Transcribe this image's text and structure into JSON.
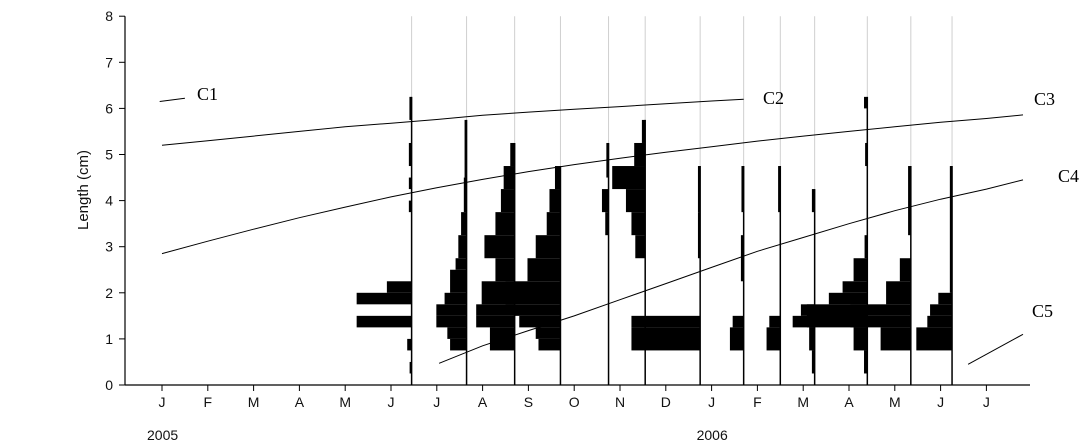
{
  "chart_data": {
    "type": "line",
    "ylabel": "Length (cm)",
    "ylim": [
      0,
      8
    ],
    "yticks": [
      "0",
      "1",
      "2",
      "3",
      "4",
      "5",
      "6",
      "7",
      "8"
    ],
    "x_months": [
      "J",
      "F",
      "M",
      "A",
      "M",
      "J",
      "J",
      "A",
      "S",
      "O",
      "N",
      "D",
      "J",
      "F",
      "M",
      "A",
      "M",
      "J",
      "J"
    ],
    "x_years": [
      {
        "label": "2005",
        "month_index": 0
      },
      {
        "label": "2006",
        "month_index": 12
      }
    ],
    "xlim": [
      0,
      18.8
    ],
    "sample_dates": [
      5.45,
      6.65,
      7.7,
      8.7,
      9.75,
      10.55,
      11.75,
      12.7,
      13.5,
      14.25,
      15.4,
      16.35,
      17.25
    ],
    "bar_scale": 0.012,
    "length_frequency": [
      {
        "date": 5.45,
        "bins": [
          [
            0.25,
            0.5,
            2
          ],
          [
            0.75,
            1.0,
            8
          ],
          [
            1.25,
            1.5,
            100
          ],
          [
            1.75,
            2.0,
            100
          ],
          [
            2.0,
            2.25,
            45
          ],
          [
            3.75,
            4.0,
            5
          ],
          [
            4.25,
            4.5,
            5
          ],
          [
            4.75,
            5.0,
            5
          ],
          [
            5.0,
            5.25,
            5
          ],
          [
            5.75,
            6.25,
            4
          ]
        ]
      },
      {
        "date": 6.65,
        "bins": [
          [
            0.75,
            1.0,
            30
          ],
          [
            1.0,
            1.25,
            35
          ],
          [
            1.25,
            1.5,
            55
          ],
          [
            1.5,
            1.75,
            55
          ],
          [
            1.75,
            2.0,
            40
          ],
          [
            2.0,
            2.5,
            30
          ],
          [
            2.5,
            2.75,
            20
          ],
          [
            2.75,
            3.25,
            15
          ],
          [
            3.25,
            3.75,
            10
          ],
          [
            3.75,
            4.5,
            5
          ],
          [
            4.5,
            5.75,
            3
          ]
        ]
      },
      {
        "date": 7.7,
        "bins": [
          [
            0.75,
            1.25,
            45
          ],
          [
            1.25,
            1.5,
            70
          ],
          [
            1.5,
            1.75,
            70
          ],
          [
            1.75,
            2.25,
            60
          ],
          [
            2.25,
            2.75,
            35
          ],
          [
            2.75,
            3.25,
            55
          ],
          [
            3.25,
            3.75,
            35
          ],
          [
            3.75,
            4.25,
            25
          ],
          [
            4.25,
            4.75,
            20
          ],
          [
            4.75,
            5.25,
            8
          ]
        ]
      },
      {
        "date": 8.7,
        "bins": [
          [
            0.75,
            1.0,
            40
          ],
          [
            1.0,
            1.25,
            45
          ],
          [
            1.25,
            1.5,
            75
          ],
          [
            1.5,
            1.75,
            85
          ],
          [
            1.75,
            2.25,
            100
          ],
          [
            2.25,
            2.75,
            60
          ],
          [
            2.75,
            3.25,
            45
          ],
          [
            3.25,
            3.75,
            25
          ],
          [
            3.75,
            4.25,
            20
          ],
          [
            4.25,
            4.75,
            10
          ]
        ]
      },
      {
        "date": 9.75,
        "bins": [
          [
            3.25,
            3.75,
            6
          ],
          [
            3.75,
            4.25,
            12
          ],
          [
            4.5,
            5.25,
            4
          ]
        ]
      },
      {
        "date": 10.55,
        "bins": [
          [
            2.75,
            3.25,
            18
          ],
          [
            3.25,
            3.75,
            25
          ],
          [
            3.75,
            4.25,
            35
          ],
          [
            4.25,
            4.75,
            60
          ],
          [
            4.75,
            5.25,
            20
          ],
          [
            5.25,
            5.75,
            6
          ]
        ]
      },
      {
        "date": 11.75,
        "bins": [
          [
            0.75,
            1.25,
            125
          ],
          [
            1.25,
            1.5,
            125
          ],
          [
            2.75,
            3.75,
            4
          ],
          [
            3.75,
            4.75,
            4
          ]
        ]
      },
      {
        "date": 12.7,
        "bins": [
          [
            0.75,
            1.25,
            25
          ],
          [
            1.25,
            1.5,
            20
          ],
          [
            2.25,
            3.25,
            5
          ],
          [
            3.75,
            4.75,
            4
          ]
        ]
      },
      {
        "date": 13.5,
        "bins": [
          [
            0.75,
            1.25,
            25
          ],
          [
            1.25,
            1.5,
            20
          ],
          [
            3.75,
            4.75,
            4
          ]
        ]
      },
      {
        "date": 14.25,
        "bins": [
          [
            0.25,
            0.75,
            5
          ],
          [
            0.75,
            1.25,
            10
          ],
          [
            1.25,
            1.5,
            40
          ],
          [
            1.5,
            1.75,
            25
          ],
          [
            3.75,
            4.25,
            5
          ]
        ]
      },
      {
        "date": 15.4,
        "bins": [
          [
            0.25,
            0.75,
            6
          ],
          [
            0.75,
            1.25,
            25
          ],
          [
            1.25,
            1.75,
            110
          ],
          [
            1.75,
            2.0,
            70
          ],
          [
            2.0,
            2.25,
            45
          ],
          [
            2.25,
            2.75,
            25
          ],
          [
            2.75,
            3.25,
            5
          ],
          [
            4.75,
            5.25,
            4
          ],
          [
            6.0,
            6.25,
            6
          ]
        ]
      },
      {
        "date": 16.35,
        "bins": [
          [
            0.75,
            1.25,
            55
          ],
          [
            1.25,
            1.5,
            110
          ],
          [
            1.5,
            1.75,
            110
          ],
          [
            1.75,
            2.25,
            45
          ],
          [
            2.25,
            2.75,
            20
          ],
          [
            3.25,
            4.75,
            5
          ]
        ]
      },
      {
        "date": 17.25,
        "bins": [
          [
            0.75,
            1.25,
            65
          ],
          [
            1.25,
            1.5,
            45
          ],
          [
            1.5,
            1.75,
            40
          ],
          [
            1.75,
            2.0,
            25
          ],
          [
            2.0,
            4.75,
            4
          ]
        ]
      }
    ],
    "cohorts": [
      {
        "label": "C1",
        "points": [
          [
            -0.05,
            6.15
          ],
          [
            0.5,
            6.22
          ]
        ]
      },
      {
        "label": "C2",
        "points": [
          [
            0,
            5.2
          ],
          [
            1,
            5.3
          ],
          [
            2,
            5.4
          ],
          [
            3,
            5.5
          ],
          [
            4,
            5.6
          ],
          [
            5,
            5.68
          ],
          [
            6,
            5.76
          ],
          [
            7,
            5.85
          ],
          [
            8,
            5.92
          ],
          [
            9,
            5.98
          ],
          [
            10,
            6.04
          ],
          [
            11,
            6.1
          ],
          [
            12,
            6.16
          ],
          [
            12.7,
            6.2
          ]
        ]
      },
      {
        "label": "C3",
        "points": [
          [
            0,
            2.85
          ],
          [
            1,
            3.12
          ],
          [
            2,
            3.38
          ],
          [
            3,
            3.63
          ],
          [
            4,
            3.86
          ],
          [
            5,
            4.08
          ],
          [
            6,
            4.28
          ],
          [
            7,
            4.46
          ],
          [
            8,
            4.63
          ],
          [
            9,
            4.78
          ],
          [
            10,
            4.92
          ],
          [
            11,
            5.05
          ],
          [
            12,
            5.17
          ],
          [
            13,
            5.29
          ],
          [
            14,
            5.4
          ],
          [
            15,
            5.5
          ],
          [
            16,
            5.6
          ],
          [
            17,
            5.7
          ],
          [
            18,
            5.78
          ],
          [
            18.8,
            5.86
          ]
        ]
      },
      {
        "label": "C4",
        "points": [
          [
            6.05,
            0.47
          ],
          [
            7,
            0.85
          ],
          [
            8,
            1.18
          ],
          [
            9,
            1.5
          ],
          [
            10,
            1.85
          ],
          [
            11,
            2.2
          ],
          [
            12,
            2.55
          ],
          [
            13,
            2.9
          ],
          [
            14,
            3.2
          ],
          [
            15,
            3.5
          ],
          [
            16,
            3.78
          ],
          [
            17,
            4.03
          ],
          [
            18,
            4.25
          ],
          [
            18.8,
            4.45
          ]
        ]
      },
      {
        "label": "C5",
        "points": [
          [
            17.6,
            0.45
          ],
          [
            18.8,
            1.1
          ]
        ]
      }
    ]
  }
}
